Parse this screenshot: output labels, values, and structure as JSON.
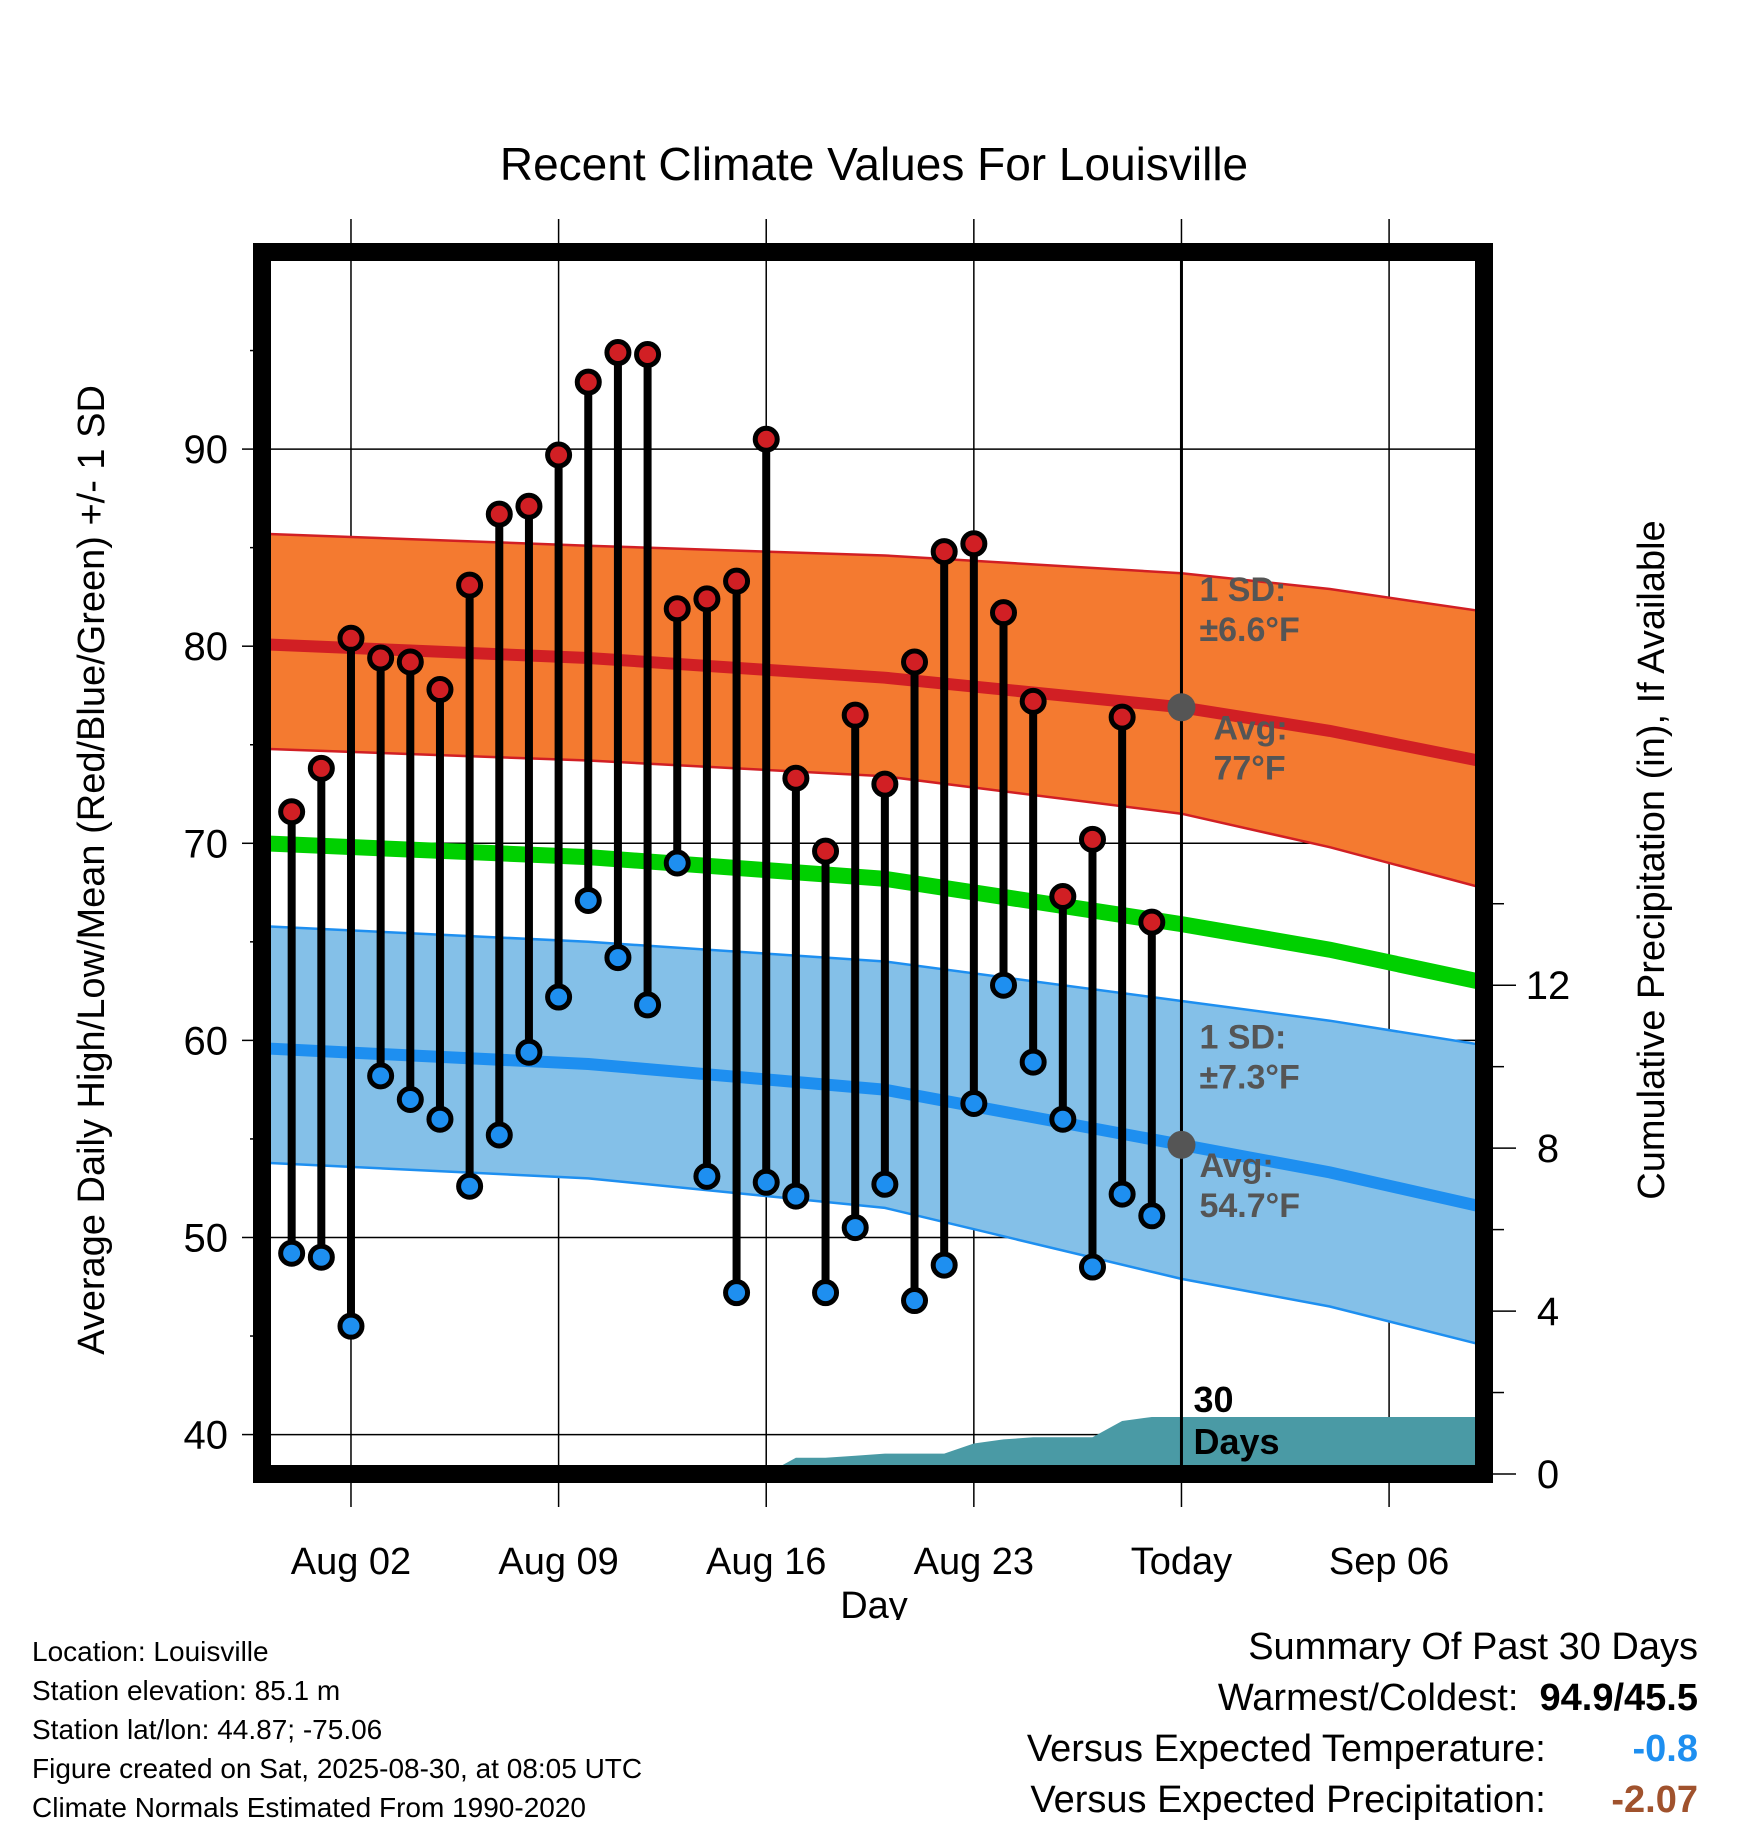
{
  "chart_data": {
    "type": "line",
    "title": "Recent Climate Values For Louisville",
    "xlabel": "Day",
    "ylabel": "Average Daily High/Low/Mean (Red/Blue/Green) +/- 1 SD",
    "y2label": "Cumulative Precipitation (in), If Available",
    "ylim": [
      38,
      100
    ],
    "y2lim": [
      0,
      30
    ],
    "xlim": [
      -1.0,
      40.2
    ],
    "y_ticks": [
      40,
      50,
      60,
      70,
      80,
      90
    ],
    "y2_ticks": [
      0,
      4,
      8,
      12
    ],
    "x_ticks": [
      {
        "day": 2,
        "label": "Aug 02"
      },
      {
        "day": 9,
        "label": "Aug 09"
      },
      {
        "day": 16,
        "label": "Aug 16"
      },
      {
        "day": 23,
        "label": "Aug 23"
      },
      {
        "day": 30,
        "label": "Today"
      },
      {
        "day": 37,
        "label": "Sep 06"
      }
    ],
    "grid": true,
    "today_day": 30,
    "window_label": "30 Days",
    "normals": {
      "day": [
        -1,
        10,
        20,
        30,
        35,
        40
      ],
      "high_mean": [
        80.1,
        79.4,
        78.4,
        76.9,
        75.7,
        74.2
      ],
      "high_upper": [
        85.7,
        85.1,
        84.6,
        83.7,
        82.9,
        81.8
      ],
      "high_lower": [
        74.8,
        74.2,
        73.4,
        71.5,
        69.8,
        67.8
      ],
      "mean": [
        70.0,
        69.3,
        68.2,
        65.9,
        64.6,
        63.0
      ],
      "low_mean": [
        59.6,
        58.8,
        57.5,
        54.7,
        53.3,
        51.6
      ],
      "low_upper": [
        65.8,
        65.0,
        64.0,
        62.0,
        61.0,
        59.8
      ],
      "low_lower": [
        53.8,
        53.0,
        51.5,
        47.9,
        46.5,
        44.6
      ]
    },
    "series": [
      {
        "name": "High",
        "color": "#d11f24",
        "x": [
          0,
          1,
          2,
          3,
          4,
          5,
          6,
          7,
          8,
          9,
          10,
          11,
          12,
          13,
          14,
          15,
          16,
          17,
          18,
          19,
          20,
          21,
          22,
          23,
          24,
          25,
          26,
          27,
          28,
          29
        ],
        "values": [
          71.6,
          73.8,
          80.4,
          79.4,
          79.2,
          77.8,
          83.1,
          86.7,
          87.1,
          89.7,
          93.4,
          94.9,
          94.8,
          81.9,
          82.4,
          83.3,
          90.5,
          73.3,
          69.6,
          76.5,
          73.0,
          79.2,
          84.8,
          85.2,
          81.7,
          77.2,
          67.3,
          70.2,
          76.4,
          66.0
        ]
      },
      {
        "name": "Low",
        "color": "#1e8ff0",
        "x": [
          0,
          1,
          2,
          3,
          4,
          5,
          6,
          7,
          8,
          9,
          10,
          11,
          12,
          13,
          14,
          15,
          16,
          17,
          18,
          19,
          20,
          21,
          22,
          23,
          24,
          25,
          26,
          27,
          28,
          29
        ],
        "values": [
          49.2,
          49.0,
          45.5,
          58.2,
          57.0,
          56.0,
          52.6,
          55.2,
          59.4,
          62.2,
          67.1,
          64.2,
          61.8,
          69.0,
          53.1,
          47.2,
          52.8,
          52.1,
          47.2,
          50.5,
          52.7,
          46.8,
          48.6,
          56.8,
          62.8,
          58.9,
          56.0,
          48.5,
          52.2,
          51.1
        ]
      },
      {
        "name": "Cumulative Precipitation",
        "color": "#4a9aa5",
        "x": [
          16,
          17,
          18,
          19,
          20,
          21,
          22,
          23,
          24,
          25,
          26,
          27,
          28,
          29,
          30,
          31,
          40
        ],
        "values": [
          0,
          0.4,
          0.4,
          0.45,
          0.5,
          0.5,
          0.5,
          0.75,
          0.85,
          0.9,
          0.9,
          0.9,
          1.3,
          1.4,
          1.4,
          1.4,
          1.4
        ]
      }
    ],
    "annotations": {
      "high_sd": "1 SD:",
      "high_sd_value": "±6.6°F",
      "high_avg": "Avg:",
      "high_avg_value": "77°F",
      "low_sd": "1 SD:",
      "low_sd_value": "±7.3°F",
      "low_avg": "Avg:",
      "low_avg_value": "54.7°F"
    },
    "colors": {
      "high_band": "#f47a30",
      "high_line": "#d11f24",
      "low_band": "#84c0e8",
      "low_line": "#1e8ff0",
      "mean_line": "#00d000",
      "precip": "#4a9aa5",
      "annotation_text": "#555555"
    }
  },
  "info": {
    "location": "Location: Louisville",
    "elevation": "Station elevation: 85.1 m",
    "latlon": "Station lat/lon: 44.87; -75.06",
    "created": "Figure created on Sat, 2025-08-30, at 08:05 UTC",
    "normals": "Climate Normals Estimated From 1990-2020"
  },
  "summary": {
    "title": "Summary Of Past 30 Days",
    "warm_cold_label": "Warmest/Coldest:",
    "warm_cold_value": "94.9/45.5",
    "temp_label": "Versus Expected Temperature:",
    "temp_value": "-0.8",
    "temp_color": "#1e8ff0",
    "precip_label": "Versus Expected Precipitation:",
    "precip_value": "-2.07",
    "precip_color": "#a0522d"
  }
}
